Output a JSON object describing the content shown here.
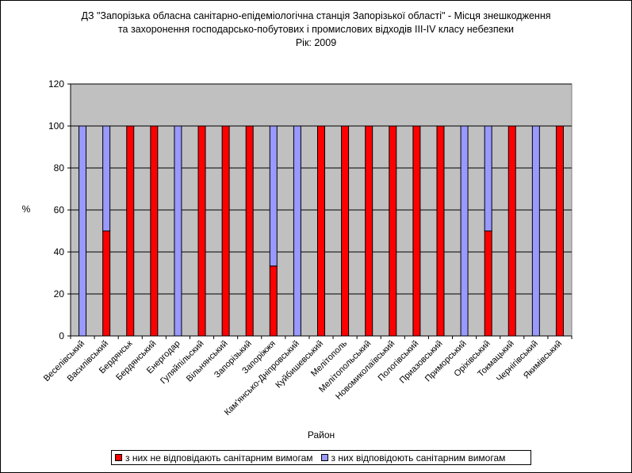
{
  "title_lines": [
    "ДЗ \"Запорізька обласна санітарно-епідеміологічна станція Запорізької області\" - Місця знешкодження",
    "та захоронення господарсько-побутових і промислових відходів ІІІ-ІV класу небезпеки",
    "Рік: 2009"
  ],
  "colors": {
    "series_fail": "#ff0000",
    "series_ok": "#9999ff",
    "plot_background": "#c0c0c0"
  },
  "chart_data": {
    "type": "bar",
    "stacked": true,
    "xlabel": "Район",
    "ylabel": "%",
    "ylim": [
      0,
      120
    ],
    "yticks": [
      0,
      20,
      40,
      60,
      80,
      100,
      120
    ],
    "grid": true,
    "legend_position": "bottom",
    "categories": [
      "Веселівський",
      "Василівський",
      "Бердянськ",
      "Бердянський",
      "Енергодар",
      "Гуляйпільский",
      "Вільнянський",
      "Запорізький",
      "Запоріжжя",
      "Кам'янсько-Дніпровський",
      "Куйбишевський",
      "Мелітополь",
      "Мелітопольський",
      "Новомиколаївський",
      "Пологівський",
      "Приазовський",
      "Приморський",
      "Оріхівський",
      "Токмацький",
      "Чернігівський",
      "Якимівський"
    ],
    "series": [
      {
        "name": "з них не відповідають санітарним вимогам",
        "values": [
          0,
          50,
          100,
          100,
          0,
          100,
          100,
          100,
          33.3,
          0,
          100,
          100,
          100,
          100,
          100,
          100,
          0,
          50,
          100,
          0,
          100
        ]
      },
      {
        "name": "з них відповідоють санітарним вимогам",
        "values": [
          100,
          50,
          0,
          0,
          100,
          0,
          0,
          0,
          66.7,
          100,
          0,
          0,
          0,
          0,
          0,
          0,
          100,
          50,
          0,
          100,
          0
        ]
      }
    ]
  }
}
